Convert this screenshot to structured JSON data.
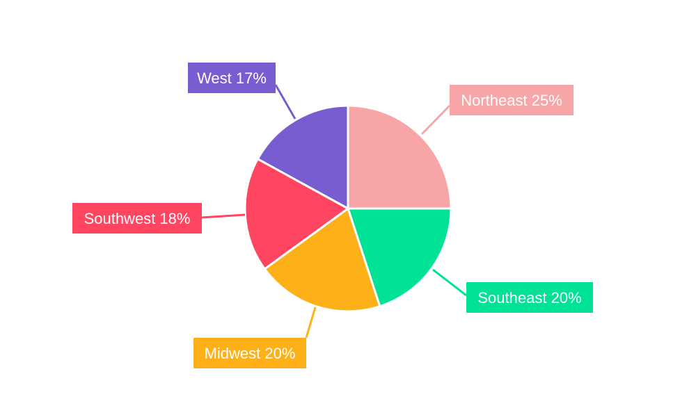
{
  "chart_data": {
    "type": "pie",
    "start_angle": "12 o'clock, clockwise",
    "slices": [
      {
        "label": "Northeast",
        "value": 25,
        "display": "Northeast 25%",
        "color": "#F8A5A7"
      },
      {
        "label": "Southeast",
        "value": 20,
        "display": "Southeast 20%",
        "color": "#00E396"
      },
      {
        "label": "Midwest",
        "value": 20,
        "display": "Midwest 20%",
        "color": "#FEB019"
      },
      {
        "label": "Southwest",
        "value": 18,
        "display": "Southwest 18%",
        "color": "#FF4560"
      },
      {
        "label": "West",
        "value": 17,
        "display": "West 17%",
        "color": "#775DD0"
      }
    ]
  }
}
